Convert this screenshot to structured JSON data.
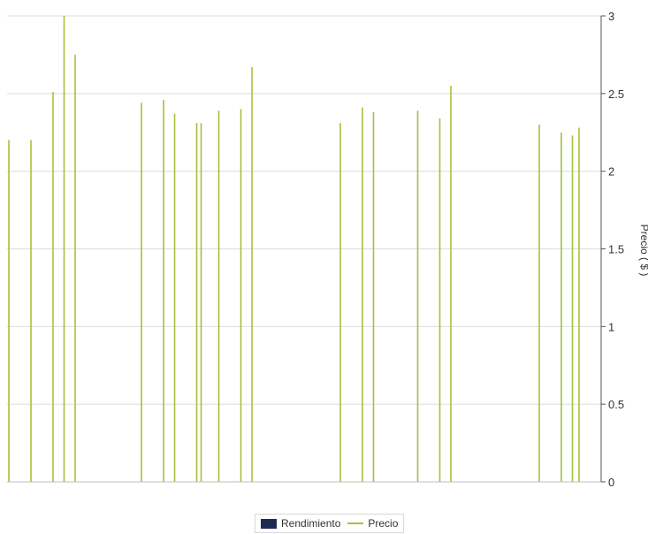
{
  "chart_data": {
    "type": "bar",
    "title": "",
    "xlabel": "",
    "ylabel": "Precio ( $ )",
    "y_axis_side": "right",
    "ylim": [
      0,
      3
    ],
    "yticks": [
      "0",
      "0.5",
      "1",
      "1.5",
      "2",
      "2.5",
      "3"
    ],
    "grid": true,
    "legend_position": "bottom-center",
    "series": [
      {
        "name": "Rendimiento",
        "color": "#1f2a50",
        "values": []
      },
      {
        "name": "Precio",
        "color": "#a4c23a",
        "mark": "vertical-line",
        "x": [
          0,
          2,
          4,
          5,
          6,
          12,
          14,
          15,
          17,
          17.4,
          19,
          21,
          22,
          30,
          32,
          33,
          37,
          39,
          40,
          48,
          50,
          51,
          51.6
        ],
        "values": [
          2.2,
          2.2,
          2.51,
          3.0,
          2.75,
          2.44,
          2.46,
          2.37,
          2.31,
          2.31,
          2.39,
          2.4,
          2.67,
          2.31,
          2.41,
          2.38,
          2.39,
          2.34,
          2.55,
          2.3,
          2.25,
          2.23,
          2.28
        ]
      }
    ]
  }
}
